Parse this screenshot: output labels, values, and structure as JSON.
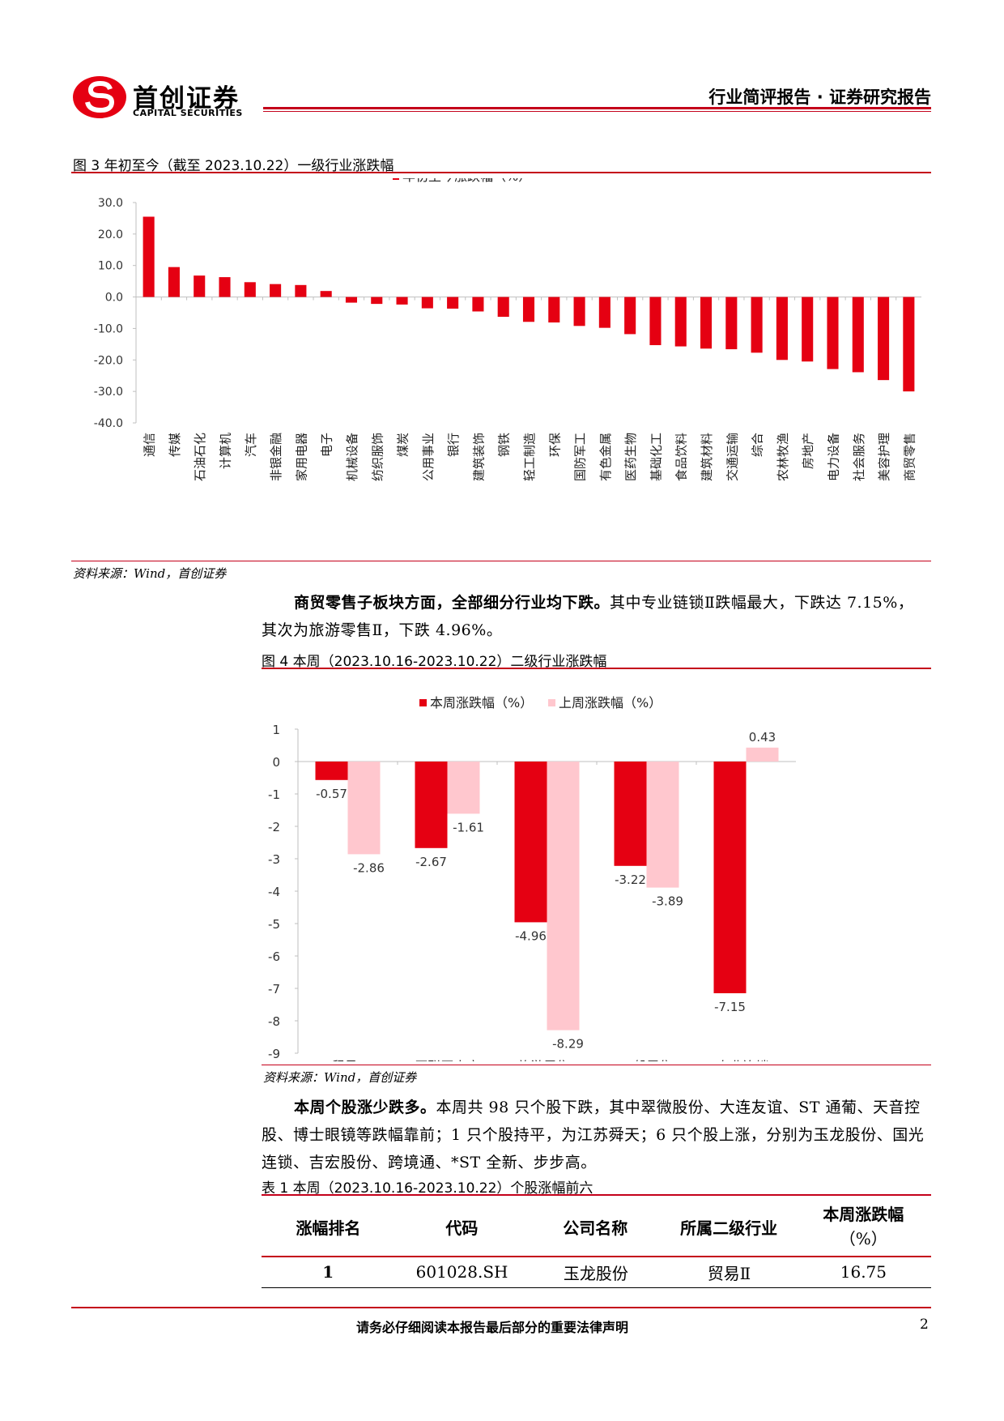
{
  "header": {
    "logo_cn": "首创证券",
    "logo_en": "CAPITAL SECURITIES",
    "report_type": "行业简评报告 · 证券研究报告"
  },
  "fig3": {
    "caption": "图 3  年初至今（截至 2023.10.22）一级行业涨跌幅",
    "source": "资料来源：Wind，首创证券"
  },
  "para1": {
    "bold": "商贸零售子板块方面，全部细分行业均下跌。",
    "rest": "其中专业链锁Ⅱ跌幅最大，下跌达 7.15%，其次为旅游零售Ⅱ，下跌 4.96%。"
  },
  "fig4": {
    "caption": "图 4  本周（2023.10.16-2023.10.22）二级行业涨跌幅",
    "source": "资料来源：Wind，首创证券"
  },
  "para2": {
    "bold": "本周个股涨少跌多。",
    "rest": "本周共 98 只个股下跌，其中翠微股份、大连友谊、ST 通葡、天音控股、博士眼镜等跌幅靠前；1 只个股持平，为江苏舜天；6 只个股上涨，分别为玉龙股份、国光连锁、吉宏股份、跨境通、*ST 全新、步步高。"
  },
  "table1": {
    "caption": "表 1  本周（2023.10.16-2023.10.22）个股涨幅前六",
    "headers": [
      "涨幅排名",
      "代码",
      "公司名称",
      "所属二级行业",
      "本周涨跌幅",
      "（%）"
    ],
    "rows": [
      [
        "1",
        "601028.SH",
        "玉龙股份",
        "贸易Ⅱ",
        "16.75"
      ]
    ]
  },
  "footer": {
    "disclaimer": "请务必仔细阅读本报告最后部分的重要法律声明",
    "page": "2"
  },
  "colors": {
    "accent": "#e50012",
    "light": "#ffc7ce",
    "rule": "#c4001a"
  },
  "chart_data": [
    {
      "type": "bar",
      "legend": [
        "年初至今涨跌幅（%）"
      ],
      "categories": [
        "通信",
        "传媒",
        "石油石化",
        "计算机",
        "汽车",
        "非银金融",
        "家用电器",
        "电子",
        "机械设备",
        "纺织服饰",
        "煤炭",
        "公用事业",
        "银行",
        "建筑装饰",
        "钢铁",
        "轻工制造",
        "环保",
        "国防军工",
        "有色金属",
        "医药生物",
        "基础化工",
        "食品饮料",
        "建筑材料",
        "交通运输",
        "综合",
        "农林牧渔",
        "房地产",
        "电力设备",
        "社会服务",
        "美容护理",
        "商贸零售"
      ],
      "values": [
        25.5,
        9.5,
        6.8,
        6.3,
        4.7,
        4.1,
        3.8,
        1.9,
        -1.8,
        -2.2,
        -2.4,
        -3.6,
        -3.7,
        -4.6,
        -6.3,
        -7.9,
        -8.1,
        -9.2,
        -9.8,
        -11.8,
        -15.3,
        -15.7,
        -16.4,
        -16.6,
        -17.7,
        -20.0,
        -20.5,
        -22.9,
        -23.9,
        -26.4,
        -30.0
      ],
      "ylim": [
        -40,
        30
      ],
      "yticks": [
        "30.0",
        "20.0",
        "10.0",
        "0.0",
        "-10.0",
        "-20.0",
        "-30.0",
        "-40.0"
      ],
      "legend_position": "top"
    },
    {
      "type": "bar",
      "categories": [
        "贸易Ⅱ",
        "互联网电商",
        "旅游零售Ⅱ",
        "一般零售",
        "专业连锁Ⅱ"
      ],
      "series": [
        {
          "name": "本周涨跌幅（%）",
          "values": [
            -0.57,
            -2.67,
            -4.96,
            -3.22,
            -7.15
          ],
          "labels": [
            "-0.57",
            "-2.67",
            "-4.96",
            "-3.22",
            "-7.15"
          ]
        },
        {
          "name": "上周涨跌幅（%）",
          "values": [
            -2.86,
            -1.61,
            -8.29,
            -3.89,
            0.43
          ],
          "labels": [
            "-2.86",
            "-1.61",
            "-8.29",
            "-3.89",
            "0.43"
          ]
        }
      ],
      "ylim": [
        -9,
        1
      ],
      "yticks": [
        "1",
        "0",
        "-1",
        "-2",
        "-3",
        "-4",
        "-5",
        "-6",
        "-7",
        "-8",
        "-9"
      ],
      "legend_position": "top"
    }
  ]
}
